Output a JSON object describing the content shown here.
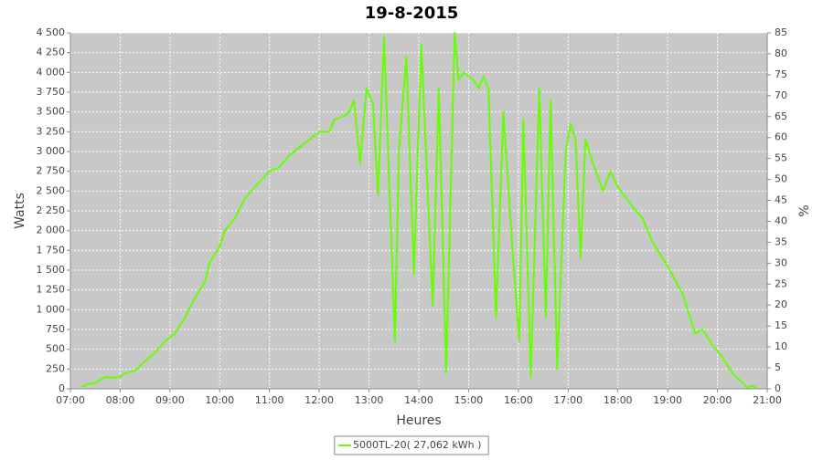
{
  "chart_data": {
    "type": "line",
    "title": "19-8-2015",
    "x_label": "Heures",
    "y_label": "Watts",
    "y2_label": "%",
    "x": [
      7.22,
      7.35,
      7.5,
      7.6,
      7.7,
      7.85,
      8.0,
      8.1,
      8.3,
      8.5,
      8.7,
      8.9,
      9.1,
      9.3,
      9.5,
      9.7,
      9.8,
      10.0,
      10.1,
      10.3,
      10.5,
      10.7,
      11.0,
      11.2,
      11.4,
      11.6,
      11.8,
      12.0,
      12.2,
      12.3,
      12.5,
      12.6,
      12.7,
      12.82,
      12.95,
      13.08,
      13.18,
      13.3,
      13.52,
      13.6,
      13.75,
      13.9,
      14.05,
      14.28,
      14.4,
      14.55,
      14.72,
      14.8,
      14.9,
      15.1,
      15.2,
      15.3,
      15.4,
      15.55,
      15.7,
      15.9,
      16.02,
      16.1,
      16.25,
      16.42,
      16.55,
      16.65,
      16.78,
      16.95,
      17.05,
      17.15,
      17.25,
      17.35,
      17.5,
      17.7,
      17.85,
      18.0,
      18.3,
      18.5,
      18.7,
      19.0,
      19.3,
      19.55,
      19.7,
      19.9,
      20.1,
      20.3,
      20.6,
      20.7,
      20.8
    ],
    "series": [
      {
        "name": "5000TL-20( 27,062 kWh )",
        "color": "#66ff00",
        "values": [
          20,
          60,
          70,
          115,
          150,
          140,
          150,
          200,
          230,
          350,
          460,
          600,
          700,
          900,
          1150,
          1350,
          1600,
          1800,
          2000,
          2150,
          2400,
          2550,
          2750,
          2800,
          2950,
          3050,
          3150,
          3250,
          3250,
          3400,
          3450,
          3500,
          3650,
          2850,
          3800,
          3600,
          2450,
          4450,
          600,
          3000,
          4200,
          1450,
          4350,
          1050,
          3800,
          200,
          4500,
          3900,
          4000,
          3900,
          3800,
          3950,
          3800,
          900,
          3500,
          1600,
          600,
          3400,
          150,
          3800,
          900,
          3650,
          250,
          3000,
          3350,
          3150,
          1650,
          3150,
          2850,
          2500,
          2750,
          2550,
          2300,
          2150,
          1850,
          1550,
          1200,
          700,
          750,
          550,
          400,
          200,
          20,
          40,
          0
        ]
      }
    ],
    "xlim": [
      7,
      21
    ],
    "xticks": [
      {
        "value": 7,
        "label": "07:00"
      },
      {
        "value": 8,
        "label": "08:00"
      },
      {
        "value": 9,
        "label": "09:00"
      },
      {
        "value": 10,
        "label": "10:00"
      },
      {
        "value": 11,
        "label": "11:00"
      },
      {
        "value": 12,
        "label": "12:00"
      },
      {
        "value": 13,
        "label": "13:00"
      },
      {
        "value": 14,
        "label": "14:00"
      },
      {
        "value": 15,
        "label": "15:00"
      },
      {
        "value": 16,
        "label": "16:00"
      },
      {
        "value": 17,
        "label": "17:00"
      },
      {
        "value": 18,
        "label": "18:00"
      },
      {
        "value": 19,
        "label": "19:00"
      },
      {
        "value": 20,
        "label": "20:00"
      },
      {
        "value": 21,
        "label": "21:00"
      }
    ],
    "ylim": [
      0,
      4500
    ],
    "yticks": [
      0,
      250,
      500,
      750,
      {
        "value": 1000,
        "label": "1 000"
      },
      {
        "value": 1250,
        "label": "1 250"
      },
      {
        "value": 1500,
        "label": "1 500"
      },
      {
        "value": 1750,
        "label": "1 750"
      },
      {
        "value": 2000,
        "label": "2 000"
      },
      {
        "value": 2250,
        "label": "2 250"
      },
      {
        "value": 2500,
        "label": "2 500"
      },
      {
        "value": 2750,
        "label": "2 750"
      },
      {
        "value": 3000,
        "label": "3 000"
      },
      {
        "value": 3250,
        "label": "3 250"
      },
      {
        "value": 3500,
        "label": "3 500"
      },
      {
        "value": 3750,
        "label": "3 750"
      },
      {
        "value": 4000,
        "label": "4 000"
      },
      {
        "value": 4250,
        "label": "4 250"
      },
      {
        "value": 4500,
        "label": "4 500"
      }
    ],
    "y2lim": [
      0,
      85
    ],
    "y2ticks": [
      0,
      5,
      10,
      15,
      20,
      25,
      30,
      35,
      40,
      45,
      50,
      55,
      60,
      65,
      70,
      75,
      80,
      85
    ],
    "grid": true,
    "legend": "bottom"
  }
}
